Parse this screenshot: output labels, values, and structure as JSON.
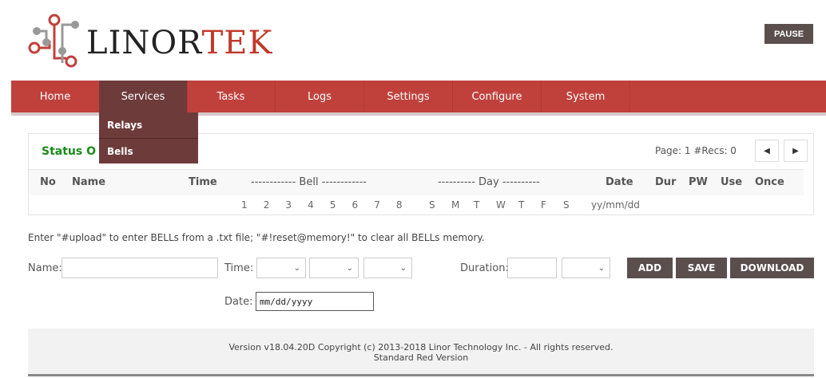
{
  "logo": {
    "text_dark": "LINOR",
    "text_red": "TEK"
  },
  "pause_label": "PAUSE",
  "nav": [
    "Home",
    "Services",
    "Tasks",
    "Logs",
    "Settings",
    "Configure",
    "System"
  ],
  "dropdown": [
    "Relays",
    "Bells"
  ],
  "panel": {
    "title": "Status O",
    "page_info": "Page: 1 #Recs: 0",
    "prev_icon": "caret-left",
    "next_icon": "caret-right",
    "headers": [
      "No",
      "Name",
      "Time",
      "------------ Bell ------------",
      "---------- Day ----------",
      "Date",
      "Dur",
      "PW",
      "Use",
      "Once"
    ],
    "bell_numbers": [
      "1",
      "2",
      "3",
      "4",
      "5",
      "6",
      "7",
      "8"
    ],
    "days": [
      "S",
      "M",
      "T",
      "W",
      "T",
      "F",
      "S"
    ],
    "date_format": "yy/mm/dd"
  },
  "note": "Enter \"#upload\" to enter BELLs from a .txt file; \"#!reset@memory!\" to clear all BELLs memory.",
  "form": {
    "name_label": "Name:",
    "time_label": "Time:",
    "duration_label": "Duration:",
    "date_label": "Date:",
    "date_placeholder": "mm/dd/yyyy",
    "add": "ADD",
    "save": "SAVE",
    "download": "DOWNLOAD"
  },
  "footer": {
    "line1": "Version v18.04.20D Copyright (c) 2013-2018 Linor Technology Inc. - All rights reserved.",
    "line2": "Standard Red Version"
  },
  "colors": {
    "nav": "#c0413c",
    "nav_active": "#6e3b3b",
    "button": "#5a4f4d",
    "status_title": "#1a8a1a"
  }
}
